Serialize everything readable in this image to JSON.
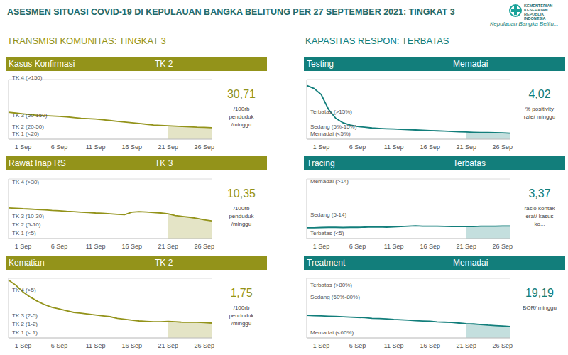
{
  "title": "ASESMEN SITUASI COVID-19 DI KEPULAUAN BANGKA BELITUNG PER 27 SEPTEMBER 2021: TINGKAT 3",
  "logo_text": [
    "KEMENTERIAN",
    "KESEHATAN",
    "REPUBLIK",
    "INDONESIA"
  ],
  "subtitle": "Kepulauan Bangka Belitu...",
  "sections": [
    {
      "title": "TRANSMISI KOMUNITAS: TINGKAT 3",
      "color": "#93931a"
    },
    {
      "title": "KAPASITAS RESPON: TERBATAS",
      "color": "#127e7b"
    }
  ],
  "chart_data": [
    {
      "type": "line",
      "title": "Kasus Konfirmasi",
      "level": "TK 2",
      "color": "#93931a",
      "categories": [
        null,
        null,
        "1 Sep",
        null,
        null,
        null,
        null,
        "6 Sep",
        null,
        null,
        null,
        null,
        "11 Sep",
        null,
        null,
        null,
        null,
        "16 Sep",
        null,
        null,
        null,
        null,
        "21 Sep",
        null,
        null,
        null,
        null,
        "26 Sep",
        null
      ],
      "values": [
        72,
        70,
        68,
        66,
        64,
        63,
        62,
        61,
        60,
        58,
        56,
        55,
        54,
        52,
        50,
        48,
        46,
        44,
        42,
        40,
        38,
        37,
        36,
        35,
        34,
        33,
        32,
        31.5,
        30.71
      ],
      "ylim": [
        0,
        160
      ],
      "yticks": [
        {
          "value": 0,
          "label": "TK 1 (<20)"
        },
        {
          "value": 20,
          "label": "TK 2 (20-50)"
        },
        {
          "value": 50,
          "label": "TK 3 (50-150)"
        },
        {
          "value": 150,
          "label": "TK 4 (>150)"
        }
      ],
      "grid": true,
      "tick_labels": "x",
      "current": "30,71",
      "unit": "/100rb penduduk /minggu"
    },
    {
      "type": "line",
      "title": "Rawat Inap RS",
      "level": "TK 3",
      "color": "#93931a",
      "categories": [
        null,
        null,
        "1 Sep",
        null,
        null,
        null,
        null,
        "6 Sep",
        null,
        null,
        null,
        null,
        "11 Sep",
        null,
        null,
        null,
        null,
        "16 Sep",
        null,
        null,
        null,
        null,
        "21 Sep",
        null,
        null,
        null,
        null,
        "26 Sep",
        null
      ],
      "values": [
        18,
        17.8,
        17.5,
        17.3,
        17,
        16.8,
        16.5,
        16.3,
        16,
        15.8,
        15.5,
        15.3,
        15,
        14.8,
        14.5,
        14.2,
        14,
        15.5,
        15.8,
        15.6,
        15.3,
        15,
        14.5,
        13.5,
        13,
        12.5,
        11.8,
        11,
        10.35
      ],
      "ylim": [
        0,
        35
      ],
      "yticks": [
        {
          "value": 0,
          "label": "TK 1 (<5)"
        },
        {
          "value": 5,
          "label": "TK 2 (5-10)"
        },
        {
          "value": 10,
          "label": "TK 3 (10-30)"
        },
        {
          "value": 30,
          "label": "TK 4 (>30)"
        }
      ],
      "grid": true,
      "tick_labels": "x",
      "current": "10,35",
      "unit": "/100rb penduduk /minggu"
    },
    {
      "type": "line",
      "title": "Kematian",
      "level": "TK 2",
      "color": "#93931a",
      "categories": [
        null,
        null,
        "1 Sep",
        null,
        null,
        null,
        null,
        "6 Sep",
        null,
        null,
        null,
        null,
        "11 Sep",
        null,
        null,
        null,
        null,
        "16 Sep",
        null,
        null,
        null,
        null,
        "21 Sep",
        null,
        null,
        null,
        null,
        "26 Sep",
        null
      ],
      "values": [
        6.8,
        6.2,
        5.4,
        4.8,
        4.3,
        3.9,
        3.6,
        3.4,
        3.2,
        3,
        2.9,
        2.8,
        2.7,
        2.6,
        2.5,
        2.3,
        2.2,
        2.1,
        2,
        1.95,
        1.9,
        1.9,
        1.95,
        1.9,
        1.85,
        1.85,
        1.85,
        1.8,
        1.75
      ],
      "ylim": [
        0,
        7
      ],
      "yticks": [
        {
          "value": 0,
          "label": "TK 1 (< 1)"
        },
        {
          "value": 1,
          "label": "TK 2 (1-2)"
        },
        {
          "value": 2,
          "label": "TK 3 (2-5)"
        },
        {
          "value": 5,
          "label": "TK 4 (>5)"
        }
      ],
      "grid": true,
      "tick_labels": "x",
      "current": "1,75",
      "unit": "/100rb penduduk /minggu"
    },
    {
      "type": "line",
      "title": "Testing",
      "level": "Memadai",
      "color": "#127e7b",
      "categories": [
        null,
        null,
        "1 Sep",
        null,
        null,
        null,
        null,
        "6 Sep",
        null,
        null,
        null,
        null,
        "11 Sep",
        null,
        null,
        null,
        null,
        "16 Sep",
        null,
        null,
        null,
        null,
        "21 Sep",
        null,
        null,
        null,
        null,
        "26 Sep",
        null
      ],
      "values": [
        36,
        34,
        30,
        20,
        14,
        11,
        9.5,
        8.5,
        8,
        7.5,
        7.2,
        7,
        6.8,
        6.6,
        6.4,
        6.2,
        6,
        5.8,
        5.6,
        5.4,
        5.2,
        5,
        4.8,
        4.6,
        4.4,
        4.5,
        4.3,
        4.2,
        4.02
      ],
      "ylim": [
        0,
        40
      ],
      "yticks": [
        {
          "value": 0,
          "label": "Memadai (<5%)"
        },
        {
          "value": 5,
          "label": "Sedang (5%-15%)"
        },
        {
          "value": 15,
          "label": "Terbatas (>15%)"
        }
      ],
      "grid": true,
      "tick_labels": "x",
      "current": "4,02",
      "unit": "% positivity rate/ minggu"
    },
    {
      "type": "line",
      "title": "Tracing",
      "level": "Terbatas",
      "color": "#127e7b",
      "categories": [
        null,
        null,
        "1 Sep",
        null,
        null,
        null,
        null,
        "6 Sep",
        null,
        null,
        null,
        null,
        "11 Sep",
        null,
        null,
        null,
        null,
        "16 Sep",
        null,
        null,
        null,
        null,
        "21 Sep",
        null,
        null,
        null,
        null,
        "26 Sep",
        null
      ],
      "values": [
        2.9,
        2.9,
        2.95,
        3,
        3,
        2.95,
        3,
        3,
        3.05,
        3.1,
        3.1,
        3.05,
        3.1,
        3.2,
        3.3,
        3.4,
        3.3,
        3.3,
        3.3,
        3.25,
        3.2,
        3.2,
        3.25,
        3.2,
        3.3,
        3.3,
        3.3,
        3.35,
        3.37
      ],
      "ylim": [
        0,
        16
      ],
      "yticks": [
        {
          "value": 0,
          "label": "Terbatas (<5)"
        },
        {
          "value": 5,
          "label": "Sedang (5-14)"
        },
        {
          "value": 14,
          "label": "Memadai (>14)"
        }
      ],
      "grid": true,
      "tick_labels": "x",
      "current": "3,37",
      "unit": "rasio kontak erat/ kasus ko..."
    },
    {
      "type": "line",
      "title": "Treatment",
      "level": "Memadai",
      "color": "#127e7b",
      "categories": [
        null,
        null,
        "1 Sep",
        null,
        null,
        null,
        null,
        "6 Sep",
        null,
        null,
        null,
        null,
        "11 Sep",
        null,
        null,
        null,
        null,
        "16 Sep",
        null,
        null,
        null,
        null,
        "21 Sep",
        null,
        null,
        null,
        null,
        "26 Sep",
        null
      ],
      "values": [
        38,
        37.5,
        37,
        36.5,
        36,
        35.5,
        35,
        34.5,
        34,
        33,
        32.5,
        32,
        31,
        30.5,
        30,
        29,
        28.5,
        28,
        27,
        26.5,
        26,
        25,
        24,
        23.5,
        22.5,
        21.5,
        20.8,
        20,
        19.19
      ],
      "ylim": [
        0,
        100
      ],
      "yticks": [
        {
          "value": 0,
          "label": "Memadai (<60%)"
        },
        {
          "value": 60,
          "label": "Sedang (60%-80%)"
        },
        {
          "value": 80,
          "label": "Terbatas (>80%)"
        }
      ],
      "grid": true,
      "tick_labels": "x",
      "current": "19,19",
      "unit": "BOR/ minggu"
    }
  ]
}
